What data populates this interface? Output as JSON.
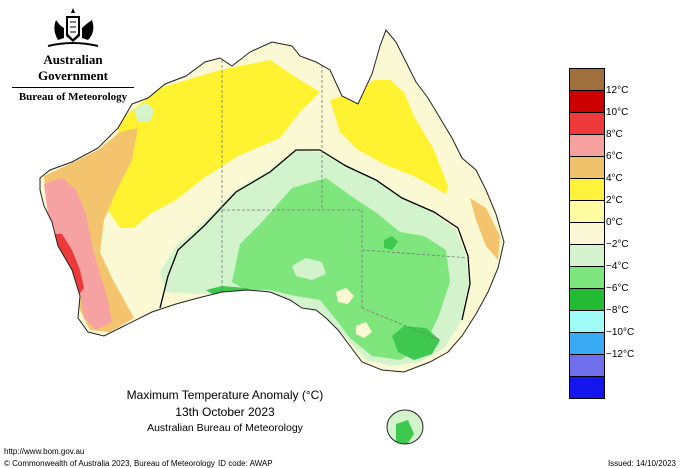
{
  "header": {
    "government": "Australian Government",
    "bureau": "Bureau of Meteorology"
  },
  "map": {
    "title": "Maximum Temperature Anomaly (°C)",
    "date": "13th October 2023",
    "credit": "Australian Bureau of Meteorology",
    "colors": {
      "ocean": "#ffffff",
      "plus4": "#fff230",
      "plus2": "#fffd9a",
      "zero": "#fbf9d4",
      "minus0": "#d3f3cd",
      "minus2": "#7fe67e",
      "minus4": "#3fc84e",
      "plus6": "#f3c36e",
      "plus8": "#f6a2a2",
      "plus10": "#ec3a3a"
    }
  },
  "legend": {
    "items": [
      {
        "label": "",
        "color": "#a0703c"
      },
      {
        "label": "12°C",
        "color": "#cc0000"
      },
      {
        "label": "10°C",
        "color": "#ee3a3a"
      },
      {
        "label": "8°C",
        "color": "#f7a0a0"
      },
      {
        "label": "6°C",
        "color": "#f1c26c"
      },
      {
        "label": "4°C",
        "color": "#fff23a"
      },
      {
        "label": "2°C",
        "color": "#fffba2"
      },
      {
        "label": "0°C",
        "color": "#fbf8d6"
      },
      {
        "label": "−2°C",
        "color": "#d6f3cf"
      },
      {
        "label": "−4°C",
        "color": "#7ee67e"
      },
      {
        "label": "−6°C",
        "color": "#22bb33"
      },
      {
        "label": "−8°C",
        "color": "#9ffcf6"
      },
      {
        "label": "−10°C",
        "color": "#3aaaf5"
      },
      {
        "label": "−12°C",
        "color": "#7070ee"
      },
      {
        "label": "",
        "color": "#1515ee"
      }
    ]
  },
  "footer": {
    "url": "http://www.bom.gov.au",
    "copyright": "© Commonwealth of Australia 2023, Bureau of Meteorology",
    "id_code": "ID code: AWAP",
    "issued": "Issued: 14/10/2023"
  }
}
